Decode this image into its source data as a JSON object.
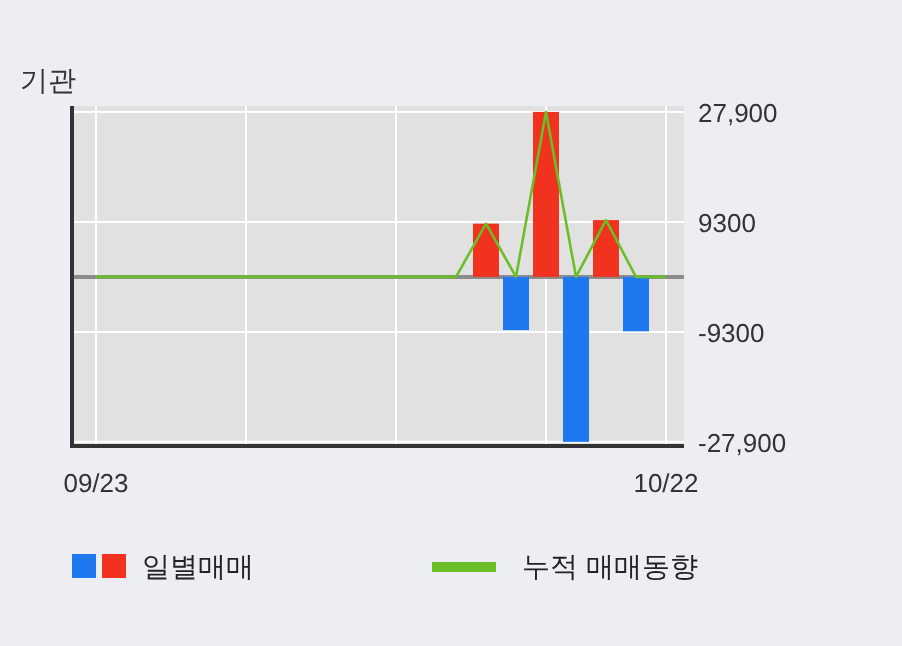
{
  "chart_data": {
    "type": "bar",
    "title": "기관",
    "categories": [
      "09/23",
      null,
      null,
      null,
      null,
      null,
      null,
      null,
      null,
      null,
      null,
      null,
      null,
      null,
      null,
      null,
      null,
      null,
      null,
      "10/22"
    ],
    "series": [
      {
        "name": "일별매매",
        "values": [
          0,
          0,
          0,
          0,
          0,
          0,
          0,
          0,
          0,
          0,
          0,
          0,
          0,
          9000,
          -9000,
          27900,
          -27900,
          9600,
          -9200,
          0
        ],
        "colors": [
          "#f0321e",
          "#f0321e",
          "#f0321e",
          "#f0321e",
          "#f0321e",
          "#f0321e",
          "#f0321e",
          "#f0321e",
          "#f0321e",
          "#f0321e",
          "#f0321e",
          "#f0321e",
          "#f0321e",
          "#f0321e",
          "#1e78f0",
          "#f0321e",
          "#1e78f0",
          "#f0321e",
          "#1e78f0",
          "#f0321e"
        ]
      },
      {
        "name": "누적 매매동향",
        "type": "line",
        "color": "#6abe28",
        "values": [
          0,
          0,
          0,
          0,
          0,
          0,
          0,
          0,
          0,
          0,
          0,
          0,
          0,
          9000,
          0,
          27900,
          0,
          9600,
          0,
          0
        ]
      }
    ],
    "ylim": [
      -28600,
      28900
    ],
    "yticks": [
      {
        "value": 27900,
        "label": "27,900"
      },
      9300,
      -9300,
      {
        "value": -27900,
        "label": "-27,900"
      }
    ],
    "grid": true,
    "legend": "bottom"
  }
}
